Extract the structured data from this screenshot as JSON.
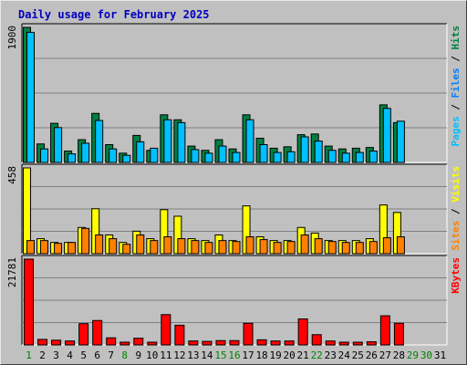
{
  "chart_data": {
    "type": "bar",
    "title": "Daily usage for February 2025",
    "days": [
      "1",
      "2",
      "3",
      "4",
      "5",
      "6",
      "7",
      "8",
      "9",
      "10",
      "11",
      "12",
      "13",
      "14",
      "15",
      "16",
      "17",
      "18",
      "19",
      "20",
      "21",
      "22",
      "23",
      "24",
      "25",
      "26",
      "27",
      "28",
      "29",
      "30",
      "31"
    ],
    "weekend_days": [
      "1",
      "8",
      "15",
      "16",
      "22",
      "29",
      "30"
    ],
    "panels": [
      {
        "name": "hits-files-pages",
        "max_label": "1900",
        "max": 1900,
        "axis_labels": [
          "Pages",
          "Files",
          "Hits"
        ],
        "separator": " / ",
        "series": [
          {
            "name": "Hits",
            "color": "#008040",
            "values": [
              1900,
              260,
              550,
              160,
              320,
              690,
              250,
              130,
              380,
              170,
              670,
              600,
              230,
              170,
              320,
              190,
              670,
              340,
              200,
              220,
              390,
              400,
              230,
              190,
              200,
              210,
              810,
              560
            ]
          },
          {
            "name": "Files",
            "color": "#00c0ff",
            "values": [
              1830,
              190,
              490,
              120,
              270,
              590,
              190,
              100,
              290,
              200,
              600,
              560,
              180,
              130,
              230,
              140,
              600,
              250,
              140,
              150,
              360,
              300,
              170,
              130,
              140,
              160,
              760,
              580
            ]
          }
        ]
      },
      {
        "name": "visits-sites",
        "max_label": "458",
        "max": 458,
        "axis_labels": [
          "Sites",
          "Visits"
        ],
        "separator": " / ",
        "series": [
          {
            "name": "Visits",
            "color": "#ffff00",
            "values": [
              458,
              80,
              60,
              60,
              140,
              240,
              100,
              60,
              120,
              80,
              235,
              200,
              80,
              70,
              100,
              70,
              255,
              90,
              70,
              70,
              140,
              110,
              70,
              70,
              70,
              80,
              260,
              220
            ]
          },
          {
            "name": "Sites",
            "color": "#ff8000",
            "values": [
              70,
              70,
              55,
              60,
              135,
              100,
              80,
              50,
              100,
              70,
              90,
              80,
              70,
              60,
              70,
              65,
              90,
              75,
              60,
              65,
              100,
              80,
              65,
              60,
              60,
              65,
              85,
              90
            ]
          }
        ]
      },
      {
        "name": "kbytes",
        "max_label": "21781",
        "max": 21781,
        "axis_labels": [
          "KBytes"
        ],
        "separator": "",
        "series": [
          {
            "name": "KBytes",
            "color": "#ff0000",
            "values": [
              21781,
              1400,
              1200,
              1000,
              5400,
              6200,
              1800,
              700,
              1700,
              700,
              7700,
              5000,
              1000,
              900,
              1100,
              1100,
              5500,
              1300,
              1000,
              1000,
              6600,
              2600,
              1000,
              700,
              700,
              800,
              7400,
              5500
            ]
          }
        ]
      }
    ]
  },
  "colors": {
    "title": "#0000c0",
    "weekend": "#008000",
    "weekday": "#000000",
    "grid": "#808080",
    "plot_bg": "#c0c0c0"
  }
}
